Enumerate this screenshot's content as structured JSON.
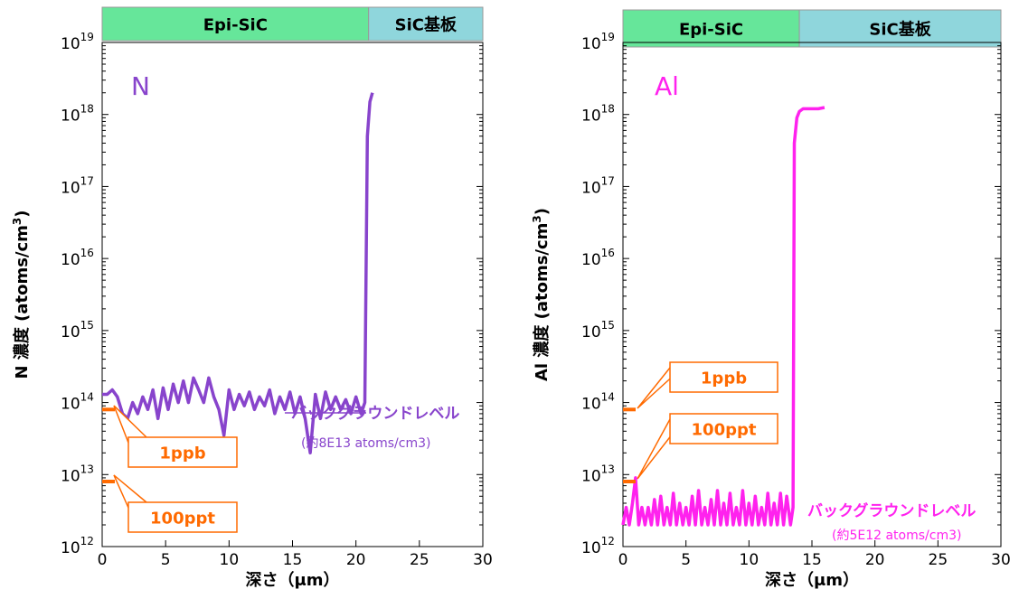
{
  "chart_data": [
    {
      "type": "line",
      "title": "",
      "element_label": "N",
      "xlabel": "深さ（μm）",
      "ylabel": "N 濃度 (atoms/cm3)",
      "xlim": [
        0,
        30
      ],
      "x_ticks": [
        "0",
        "5",
        "10",
        "15",
        "20",
        "25",
        "30"
      ],
      "ylim": [
        1000000000000.0,
        1e+19
      ],
      "y_scale": "log",
      "y_ticks": [
        {
          "base": "10",
          "exp": "12"
        },
        {
          "base": "10",
          "exp": "13"
        },
        {
          "base": "10",
          "exp": "14"
        },
        {
          "base": "10",
          "exp": "15"
        },
        {
          "base": "10",
          "exp": "16"
        },
        {
          "base": "10",
          "exp": "17"
        },
        {
          "base": "10",
          "exp": "18"
        },
        {
          "base": "10",
          "exp": "19"
        }
      ],
      "bands": [
        {
          "label": "Epi-SiC",
          "from": 0,
          "to": 21,
          "color": "#66e69a"
        },
        {
          "label": "SiC基板",
          "from": 21,
          "to": 30,
          "color": "#8fd6dc"
        }
      ],
      "series": [
        {
          "color": "#8844cc",
          "x": [
            0,
            0.4,
            0.8,
            1.2,
            1.6,
            2,
            2.4,
            2.8,
            3.2,
            3.6,
            4,
            4.4,
            4.8,
            5.2,
            5.6,
            6,
            6.4,
            6.8,
            7.2,
            7.6,
            8,
            8.4,
            8.8,
            9.2,
            9.6,
            10,
            10.4,
            10.8,
            11.2,
            11.6,
            12,
            12.4,
            12.8,
            13.2,
            13.6,
            14,
            14.4,
            14.8,
            15.2,
            15.6,
            16,
            16.4,
            16.8,
            17.2,
            17.6,
            18,
            18.4,
            18.8,
            19.2,
            19.6,
            20,
            20.4,
            20.7,
            20.9,
            21.1,
            21.3
          ],
          "y": [
            130000000000000.0,
            130000000000000.0,
            150000000000000.0,
            120000000000000.0,
            70000000000000.0,
            60000000000000.0,
            100000000000000.0,
            70000000000000.0,
            120000000000000.0,
            80000000000000.0,
            150000000000000.0,
            60000000000000.0,
            160000000000000.0,
            80000000000000.0,
            180000000000000.0,
            100000000000000.0,
            200000000000000.0,
            100000000000000.0,
            220000000000000.0,
            150000000000000.0,
            100000000000000.0,
            220000000000000.0,
            120000000000000.0,
            80000000000000.0,
            35000000000000.0,
            150000000000000.0,
            80000000000000.0,
            130000000000000.0,
            90000000000000.0,
            140000000000000.0,
            80000000000000.0,
            120000000000000.0,
            90000000000000.0,
            150000000000000.0,
            70000000000000.0,
            120000000000000.0,
            80000000000000.0,
            140000000000000.0,
            70000000000000.0,
            120000000000000.0,
            60000000000000.0,
            20000000000000.0,
            130000000000000.0,
            60000000000000.0,
            140000000000000.0,
            80000000000000.0,
            120000000000000.0,
            80000000000000.0,
            110000000000000.0,
            70000000000000.0,
            120000000000000.0,
            70000000000000.0,
            100000000000000.0,
            5e+17,
            1.5e+18,
            2e+18
          ]
        }
      ],
      "reference_levels": [
        {
          "label": "1ppb",
          "value": 80000000000000.0
        },
        {
          "label": "100ppt",
          "value": 8000000000000.0
        }
      ],
      "background": {
        "label": "バックグラウンドレベル",
        "note": "(約8E13 atoms/cm3)",
        "value": 80000000000000.0,
        "color": "#8844cc"
      }
    },
    {
      "type": "line",
      "title": "",
      "element_label": "Al",
      "xlabel": "深さ（μm）",
      "ylabel": "Al 濃度 (atoms/cm3)",
      "xlim": [
        0,
        30
      ],
      "x_ticks": [
        "0",
        "5",
        "10",
        "15",
        "20",
        "25",
        "30"
      ],
      "ylim": [
        1000000000000.0,
        1e+19
      ],
      "y_scale": "log",
      "y_ticks": [
        {
          "base": "10",
          "exp": "12"
        },
        {
          "base": "10",
          "exp": "13"
        },
        {
          "base": "10",
          "exp": "14"
        },
        {
          "base": "10",
          "exp": "15"
        },
        {
          "base": "10",
          "exp": "16"
        },
        {
          "base": "10",
          "exp": "17"
        },
        {
          "base": "10",
          "exp": "18"
        },
        {
          "base": "10",
          "exp": "19"
        }
      ],
      "bands": [
        {
          "label": "Epi-SiC",
          "from": 0,
          "to": 14,
          "color": "#66e69a"
        },
        {
          "label": "SiC基板",
          "from": 14,
          "to": 30,
          "color": "#8fd6dc"
        }
      ],
      "series": [
        {
          "color": "#ff22ee",
          "x": [
            0,
            0.25,
            0.5,
            0.75,
            1,
            1.25,
            1.5,
            1.75,
            2,
            2.25,
            2.5,
            2.75,
            3,
            3.25,
            3.5,
            3.75,
            4,
            4.25,
            4.5,
            4.75,
            5,
            5.25,
            5.5,
            5.75,
            6,
            6.25,
            6.5,
            6.75,
            7,
            7.25,
            7.5,
            7.75,
            8,
            8.25,
            8.5,
            8.75,
            9,
            9.25,
            9.5,
            9.75,
            10,
            10.25,
            10.5,
            10.75,
            11,
            11.25,
            11.5,
            11.75,
            12,
            12.25,
            12.5,
            12.75,
            13,
            13.3,
            13.5,
            13.6,
            13.8,
            14,
            14.3,
            14.6,
            15,
            15.5,
            16
          ],
          "y": [
            2000000000000.0,
            3500000000000.0,
            2000000000000.0,
            4000000000000.0,
            9000000000000.0,
            2000000000000.0,
            3500000000000.0,
            2000000000000.0,
            3500000000000.0,
            2000000000000.0,
            4500000000000.0,
            2000000000000.0,
            5000000000000.0,
            2000000000000.0,
            3500000000000.0,
            2000000000000.0,
            5500000000000.0,
            2000000000000.0,
            4000000000000.0,
            2000000000000.0,
            3500000000000.0,
            2000000000000.0,
            5000000000000.0,
            2000000000000.0,
            6000000000000.0,
            2000000000000.0,
            3500000000000.0,
            2000000000000.0,
            4500000000000.0,
            2000000000000.0,
            6000000000000.0,
            2000000000000.0,
            4000000000000.0,
            2000000000000.0,
            5500000000000.0,
            2000000000000.0,
            3500000000000.0,
            2000000000000.0,
            6000000000000.0,
            2000000000000.0,
            4000000000000.0,
            2000000000000.0,
            5000000000000.0,
            2000000000000.0,
            3500000000000.0,
            2000000000000.0,
            5500000000000.0,
            2000000000000.0,
            4000000000000.0,
            2000000000000.0,
            5500000000000.0,
            2000000000000.0,
            5000000000000.0,
            2000000000000.0,
            3500000000000.0,
            4e+17,
            9e+17,
            1.1e+18,
            1.2e+18,
            1.2e+18,
            1.2e+18,
            1.2e+18,
            1.25e+18
          ]
        }
      ],
      "reference_levels": [
        {
          "label": "1ppb",
          "value": 80000000000000.0
        },
        {
          "label": "100ppt",
          "value": 8000000000000.0
        }
      ],
      "background": {
        "label": "バックグラウンドレベル",
        "note": "(約5E12 atoms/cm3)",
        "value": 3500000000000.0,
        "color": "#ff22ee"
      }
    }
  ]
}
